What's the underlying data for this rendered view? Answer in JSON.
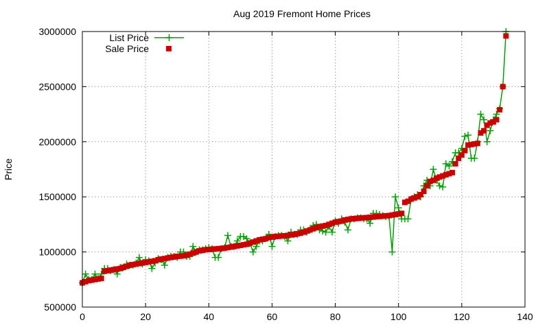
{
  "chart_data": {
    "type": "line",
    "title": "Aug 2019 Fremont Home Prices",
    "xlabel": "",
    "ylabel": "Price",
    "xlim": [
      0,
      140
    ],
    "ylim": [
      500000,
      3000000
    ],
    "xticks": [
      0,
      20,
      40,
      60,
      80,
      100,
      120,
      140
    ],
    "yticks": [
      500000,
      1000000,
      1500000,
      2000000,
      2500000,
      3000000
    ],
    "grid": true,
    "legend_position": "top-left",
    "series": [
      {
        "name": "List Price",
        "style": "line-with-plus-markers",
        "color": "#009e00",
        "x": [
          0,
          1,
          2,
          3,
          4,
          5,
          6,
          7,
          8,
          9,
          10,
          11,
          12,
          13,
          14,
          15,
          16,
          17,
          18,
          19,
          20,
          21,
          22,
          23,
          24,
          25,
          26,
          27,
          28,
          29,
          30,
          31,
          32,
          33,
          34,
          35,
          36,
          37,
          38,
          39,
          40,
          41,
          42,
          43,
          44,
          45,
          46,
          47,
          48,
          49,
          50,
          51,
          52,
          53,
          54,
          55,
          56,
          57,
          58,
          59,
          60,
          61,
          62,
          63,
          64,
          65,
          66,
          67,
          68,
          69,
          70,
          71,
          72,
          73,
          74,
          75,
          76,
          77,
          78,
          79,
          80,
          81,
          82,
          83,
          84,
          85,
          86,
          87,
          88,
          89,
          90,
          91,
          92,
          93,
          94,
          95,
          96,
          97,
          98,
          99,
          100,
          101,
          102,
          103,
          104,
          105,
          106,
          107,
          108,
          109,
          110,
          111,
          112,
          113,
          114,
          115,
          116,
          117,
          118,
          119,
          120,
          121,
          122,
          123,
          124,
          125,
          126,
          127,
          128,
          129,
          130,
          131,
          132,
          133,
          134
        ],
        "values": [
          720000,
          800000,
          750000,
          750000,
          800000,
          760000,
          800000,
          850000,
          850000,
          830000,
          840000,
          800000,
          860000,
          860000,
          890000,
          880000,
          880000,
          900000,
          950000,
          890000,
          930000,
          920000,
          850000,
          900000,
          940000,
          930000,
          880000,
          950000,
          960000,
          960000,
          950000,
          1000000,
          1000000,
          960000,
          960000,
          1050000,
          1000000,
          1020000,
          1020000,
          1030000,
          1040000,
          1030000,
          950000,
          950000,
          1030000,
          1040000,
          1150000,
          1050000,
          1050000,
          1100000,
          1140000,
          1140000,
          1120000,
          1080000,
          1000000,
          1050000,
          1100000,
          1100000,
          1120000,
          1160000,
          1050000,
          1140000,
          1150000,
          1150000,
          1140000,
          1100000,
          1180000,
          1160000,
          1160000,
          1200000,
          1200000,
          1180000,
          1200000,
          1240000,
          1250000,
          1200000,
          1190000,
          1180000,
          1230000,
          1180000,
          1280000,
          1260000,
          1300000,
          1270000,
          1200000,
          1300000,
          1300000,
          1310000,
          1310000,
          1300000,
          1300000,
          1260000,
          1350000,
          1350000,
          1340000,
          1330000,
          1320000,
          1320000,
          1000000,
          1500000,
          1400000,
          1300000,
          1300000,
          1300000,
          1480000,
          1500000,
          1520000,
          1500000,
          1600000,
          1650000,
          1600000,
          1750000,
          1650000,
          1600000,
          1590000,
          1800000,
          1780000,
          1820000,
          1900000,
          1900000,
          1940000,
          2050000,
          2060000,
          1850000,
          1850000,
          2000000,
          2250000,
          2200000,
          2000000,
          2100000,
          2200000,
          2250000,
          2300000,
          2500000,
          3000000
        ]
      },
      {
        "name": "Sale Price",
        "style": "square-markers",
        "color": "#cc0000",
        "x": [
          0,
          1,
          2,
          3,
          4,
          5,
          6,
          7,
          8,
          9,
          10,
          11,
          12,
          13,
          14,
          15,
          16,
          17,
          18,
          19,
          20,
          21,
          22,
          23,
          24,
          25,
          26,
          27,
          28,
          29,
          30,
          31,
          32,
          33,
          34,
          35,
          36,
          37,
          38,
          39,
          40,
          41,
          42,
          43,
          44,
          45,
          46,
          47,
          48,
          49,
          50,
          51,
          52,
          53,
          54,
          55,
          56,
          57,
          58,
          59,
          60,
          61,
          62,
          63,
          64,
          65,
          66,
          67,
          68,
          69,
          70,
          71,
          72,
          73,
          74,
          75,
          76,
          77,
          78,
          79,
          80,
          81,
          82,
          83,
          84,
          85,
          86,
          87,
          88,
          89,
          90,
          91,
          92,
          93,
          94,
          95,
          96,
          97,
          98,
          99,
          100,
          101,
          102,
          103,
          104,
          105,
          106,
          107,
          108,
          109,
          110,
          111,
          112,
          113,
          114,
          115,
          116,
          117,
          118,
          119,
          120,
          121,
          122,
          123,
          124,
          125,
          126,
          127,
          128,
          129,
          130,
          131,
          132,
          133,
          134
        ],
        "values": [
          720000,
          730000,
          740000,
          745000,
          750000,
          755000,
          760000,
          825000,
          830000,
          835000,
          840000,
          845000,
          850000,
          860000,
          870000,
          880000,
          885000,
          890000,
          895000,
          900000,
          905000,
          910000,
          915000,
          920000,
          930000,
          935000,
          940000,
          945000,
          950000,
          955000,
          960000,
          962000,
          965000,
          970000,
          980000,
          990000,
          1000000,
          1010000,
          1015000,
          1020000,
          1022000,
          1025000,
          1027000,
          1030000,
          1032000,
          1035000,
          1040000,
          1045000,
          1050000,
          1055000,
          1060000,
          1065000,
          1070000,
          1080000,
          1090000,
          1100000,
          1110000,
          1115000,
          1120000,
          1130000,
          1135000,
          1140000,
          1142000,
          1145000,
          1147000,
          1150000,
          1155000,
          1160000,
          1165000,
          1170000,
          1180000,
          1190000,
          1200000,
          1210000,
          1220000,
          1230000,
          1235000,
          1240000,
          1250000,
          1260000,
          1270000,
          1275000,
          1280000,
          1290000,
          1295000,
          1300000,
          1302000,
          1305000,
          1308000,
          1310000,
          1312000,
          1315000,
          1317000,
          1320000,
          1322000,
          1325000,
          1328000,
          1330000,
          1335000,
          1340000,
          1345000,
          1350000,
          1450000,
          1460000,
          1480000,
          1490000,
          1500000,
          1520000,
          1550000,
          1600000,
          1640000,
          1650000,
          1670000,
          1680000,
          1690000,
          1700000,
          1710000,
          1720000,
          1800000,
          1850000,
          1880000,
          1920000,
          1970000,
          1975000,
          1980000,
          1985000,
          2080000,
          2100000,
          2150000,
          2170000,
          2180000,
          2200000,
          2290000,
          2500000,
          2960000
        ]
      }
    ]
  }
}
